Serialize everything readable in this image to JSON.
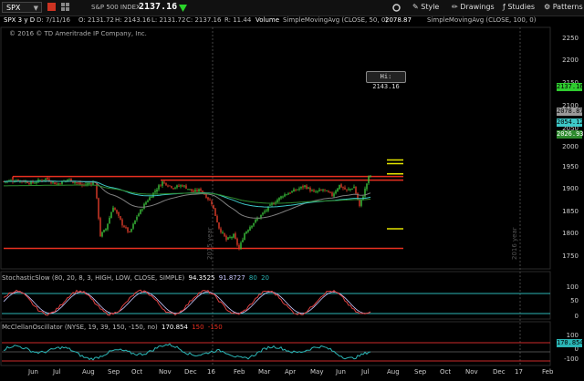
{
  "toolbar": {
    "symbol": "SPX",
    "name": "S&P 500 INDEX",
    "last": "2137.16",
    "buttons": [
      "Style",
      "Drawings",
      "Studies",
      "Patterns"
    ]
  },
  "header": {
    "title": "SPX 3 y D",
    "date": "D: 7/11/16",
    "open": "O: 2131.72",
    "high": "H: 2143.16",
    "low": "L: 2131.72",
    "close": "C: 2137.16",
    "range": "R: 11.44",
    "volume": "Volume",
    "sma50": "SimpleMovingAvg (CLOSE, 50, 0)",
    "sma50_val": "2078.87",
    "sma100": "SimpleMovingAvg (CLOSE, 100, 0)",
    "sma100_val": "2054.12"
  },
  "copyright": "© 2016 © TD Ameritrade IP Company, Inc.",
  "hi_label": "Hi: 2143.16",
  "y_ticks": [
    "2250",
    "2200",
    "2150",
    "2100",
    "2050",
    "2000",
    "1950",
    "1900",
    "1850",
    "1800",
    "1750"
  ],
  "price_tags": [
    "2137.16",
    "2078.87",
    "2054.12",
    "2026.93"
  ],
  "x_ticks": [
    "Jun",
    "Jul",
    "Aug",
    "Sep",
    "Oct",
    "Nov",
    "Dec",
    "16",
    "Feb",
    "Mar",
    "Apr",
    "May",
    "Jun",
    "Jul",
    "Aug",
    "Sep",
    "Oct",
    "Nov",
    "Dec",
    "17",
    "Feb"
  ],
  "year_labels": [
    "2015 year",
    "2016 year"
  ],
  "stochastic": {
    "label": "StochasticSlow (80, 20, 8, 3, HIGH, LOW, CLOSE, SIMPLE)",
    "k": "94.3525",
    "d": "91.8727",
    "ob": "80",
    "os": "20",
    "ticks": [
      "100",
      "50",
      "0"
    ]
  },
  "mcclellan": {
    "label": "McClellanOscillator (NYSE, 19, 39, 150, -150, no)",
    "val": "170.854",
    "up": "150",
    "dn": "-150",
    "ticks": [
      "100",
      "0",
      "-100"
    ],
    "tag": "170.854"
  },
  "colors": {
    "up": "#3cc83c",
    "down": "#e03c2a",
    "sma50": "#7f7f7f",
    "sma100": "#3ec8c8",
    "ema": "#2d8a2d",
    "level": "#e83020",
    "yellow": "#e4e400",
    "stoch_k": "#e04040",
    "stoch_d": "#c8c8ff",
    "bands": "#2bb6b6"
  }
}
